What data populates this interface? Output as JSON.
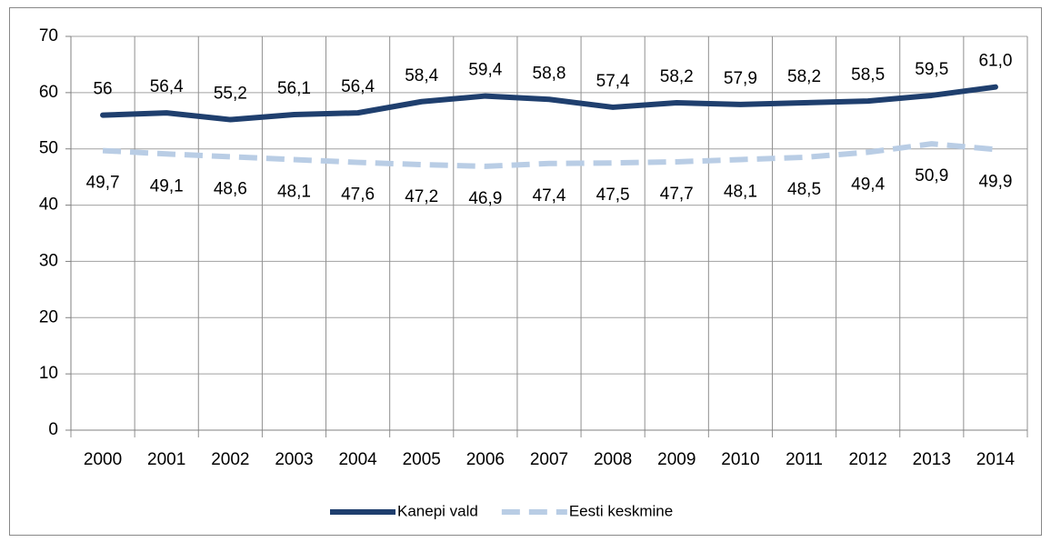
{
  "chart_data": {
    "type": "line",
    "categories": [
      "2000",
      "2001",
      "2002",
      "2003",
      "2004",
      "2005",
      "2006",
      "2007",
      "2008",
      "2009",
      "2010",
      "2011",
      "2012",
      "2013",
      "2014"
    ],
    "series": [
      {
        "name": "Kanepi vald",
        "color": "#1f3f6e",
        "dash": false,
        "values": [
          56,
          56.4,
          55.2,
          56.1,
          56.4,
          58.4,
          59.4,
          58.8,
          57.4,
          58.2,
          57.9,
          58.2,
          58.5,
          59.5,
          61.0
        ],
        "value_labels": [
          "56",
          "56,4",
          "55,2",
          "56,1",
          "56,4",
          "58,4",
          "59,4",
          "58,8",
          "57,4",
          "58,2",
          "57,9",
          "58,2",
          "58,5",
          "59,5",
          "61,0"
        ]
      },
      {
        "name": "Eesti keskmine",
        "color": "#b9cde5",
        "dash": true,
        "values": [
          49.7,
          49.1,
          48.6,
          48.1,
          47.6,
          47.2,
          46.9,
          47.4,
          47.5,
          47.7,
          48.1,
          48.5,
          49.4,
          50.9,
          49.9
        ],
        "value_labels": [
          "49,7",
          "49,1",
          "48,6",
          "48,1",
          "47,6",
          "47,2",
          "46,9",
          "47,4",
          "47,5",
          "47,7",
          "48,1",
          "48,5",
          "49,4",
          "50,9",
          "49,9"
        ]
      }
    ],
    "ylim": [
      0,
      70
    ],
    "yticks": [
      0,
      10,
      20,
      30,
      40,
      50,
      60,
      70
    ],
    "grid": true,
    "legend": "bottom"
  }
}
